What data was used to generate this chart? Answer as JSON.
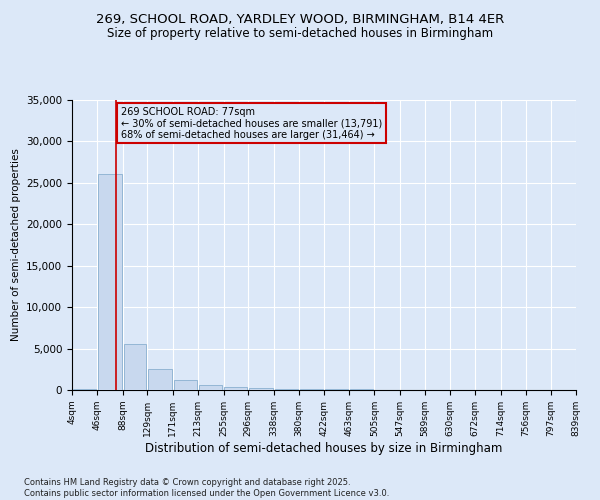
{
  "title_line1": "269, SCHOOL ROAD, YARDLEY WOOD, BIRMINGHAM, B14 4ER",
  "title_line2": "Size of property relative to semi-detached houses in Birmingham",
  "xlabel": "Distribution of semi-detached houses by size in Birmingham",
  "ylabel": "Number of semi-detached properties",
  "footer_line1": "Contains HM Land Registry data © Crown copyright and database right 2025.",
  "footer_line2": "Contains public sector information licensed under the Open Government Licence v3.0.",
  "annotation_title": "269 SCHOOL ROAD: 77sqm",
  "annotation_line2": "← 30% of semi-detached houses are smaller (13,791)",
  "annotation_line3": "68% of semi-detached houses are larger (31,464) →",
  "property_size": 77,
  "bin_edges": [
    4,
    46,
    88,
    129,
    171,
    213,
    255,
    296,
    338,
    380,
    422,
    463,
    505,
    547,
    589,
    630,
    672,
    714,
    756,
    797,
    839
  ],
  "bar_heights": [
    80,
    26100,
    5500,
    2500,
    1200,
    650,
    380,
    220,
    160,
    120,
    95,
    75,
    60,
    48,
    38,
    30,
    22,
    16,
    12,
    8
  ],
  "bar_color": "#c8d8ee",
  "bar_edgecolor": "#8ab0d0",
  "vline_color": "#cc0000",
  "annotation_box_color": "#cc0000",
  "background_color": "#dce8f8",
  "grid_color": "#ffffff",
  "ylim": [
    0,
    35000
  ],
  "yticks": [
    0,
    5000,
    10000,
    15000,
    20000,
    25000,
    30000,
    35000
  ],
  "title1_fontsize": 9.5,
  "title2_fontsize": 8.5,
  "ylabel_fontsize": 7.5,
  "xlabel_fontsize": 8.5,
  "footer_fontsize": 6.0,
  "annot_fontsize": 7.0,
  "ytick_fontsize": 7.5,
  "xtick_fontsize": 6.5
}
